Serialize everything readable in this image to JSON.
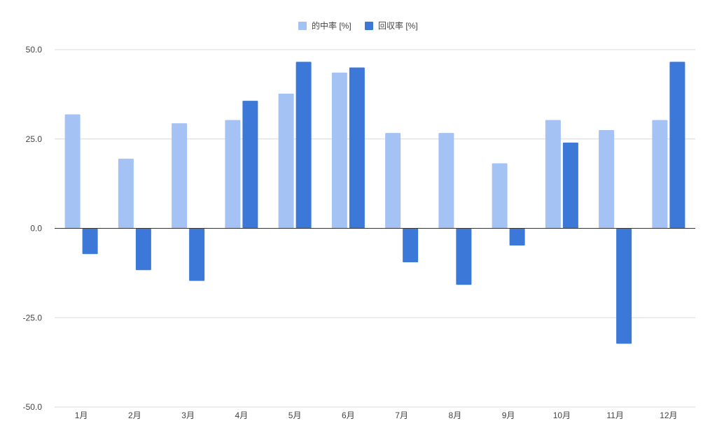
{
  "chart_data": {
    "type": "bar",
    "categories": [
      "1月",
      "2月",
      "3月",
      "4月",
      "5月",
      "6月",
      "7月",
      "8月",
      "9月",
      "10月",
      "11月",
      "12月"
    ],
    "series": [
      {
        "name": "的中率 [%]",
        "color": "#a4c2f4",
        "values": [
          31.9,
          19.5,
          29.4,
          30.3,
          37.7,
          43.6,
          26.7,
          26.7,
          18.2,
          30.3,
          27.5,
          30.3
        ]
      },
      {
        "name": "回収率 [%]",
        "color": "#3c78d8",
        "values": [
          -7.2,
          -11.7,
          -14.7,
          35.7,
          46.6,
          45.0,
          -9.5,
          -15.8,
          -4.8,
          24.0,
          -32.3,
          46.6
        ]
      }
    ],
    "ylim": [
      -50,
      50
    ],
    "yticks": [
      -50,
      -25,
      0,
      25,
      50
    ],
    "ytick_labels": [
      "-50.0",
      "-25.0",
      "0.0",
      "25.0",
      "50.0"
    ],
    "title": "",
    "xlabel": "",
    "ylabel": "",
    "grid": true,
    "legend_position": "top-center",
    "gridline_color": "#d9d9d9",
    "zero_line_color": "#333333"
  }
}
